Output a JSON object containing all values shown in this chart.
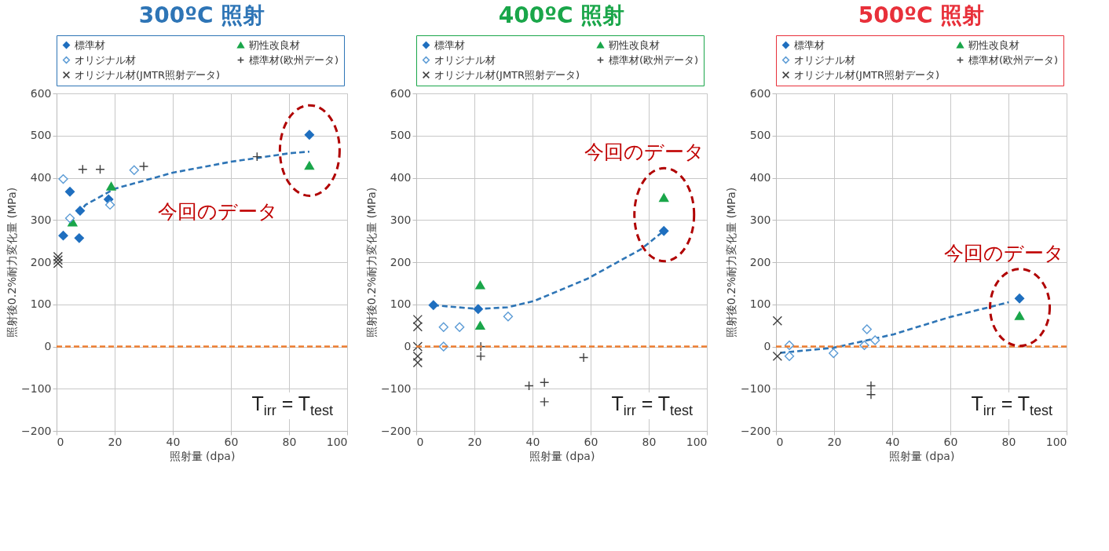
{
  "chart_data": [
    {
      "type": "scatter",
      "title": "300ºC 照射",
      "xlabel": "照射量 (dpa)",
      "ylabel": "照射後0.2%耐力変化量 (MPa)",
      "xlim": [
        0,
        100
      ],
      "ylim": [
        -200,
        600
      ],
      "xticks": [
        0,
        20,
        40,
        60,
        80,
        100
      ],
      "yticks": [
        -200,
        -100,
        0,
        100,
        200,
        300,
        400,
        500,
        600
      ],
      "grid": true,
      "legend": "top",
      "series": [
        {
          "name": "標準材",
          "type": "scatter",
          "marker": "diamond",
          "color": "#1f6fbf",
          "x": [
            2.3,
            4.6,
            7.8,
            8.1,
            17.9,
            87
          ],
          "values": [
            263,
            367,
            257,
            322,
            349,
            502
          ]
        },
        {
          "name": "靭性改良材",
          "type": "scatter",
          "marker": "triangle",
          "color": "#1aa64a",
          "x": [
            5.5,
            18.8,
            87
          ],
          "values": [
            295,
            380,
            429
          ]
        },
        {
          "name": "オリジナル材",
          "type": "scatter",
          "marker": "diamond",
          "color": "#5b9bd5",
          "x": [
            2.3,
            4.6,
            18.4,
            26.7
          ],
          "values": [
            397,
            304,
            336,
            418
          ]
        },
        {
          "name": "標準材(欧州データ)",
          "type": "scatter",
          "marker": "cross",
          "color": "#404040",
          "x": [
            9,
            15,
            30,
            69
          ],
          "values": [
            420,
            420,
            427,
            450
          ]
        },
        {
          "name": "オリジナル材(JMTR照射データ)",
          "type": "scatter",
          "marker": "x",
          "color": "#404040",
          "x": [
            0.5,
            0.5,
            0.5
          ],
          "values": [
            213,
            205,
            197
          ]
        },
        {
          "type": "line",
          "line_style": "dashed",
          "color": "#2e75b6",
          "x": [
            7.4,
            10,
            20,
            40,
            60,
            80,
            87
          ],
          "values": [
            315,
            336,
            374,
            412,
            438,
            458,
            462
          ]
        }
      ],
      "ref_lines": [
        {
          "axis": "y",
          "value": 0,
          "color": "#ed7d31",
          "line_style": "dashed"
        }
      ],
      "annotations": [
        "今回のデータ",
        "T$_{irr}$ = T$_{test}$"
      ]
    },
    {
      "type": "scatter",
      "title": "400ºC 照射",
      "xlabel": "照射量 (dpa)",
      "ylabel": "照射後0.2%耐力変化量 (MPa)",
      "xlim": [
        0,
        100
      ],
      "ylim": [
        -200,
        600
      ],
      "xticks": [
        0,
        20,
        40,
        60,
        80,
        100
      ],
      "yticks": [
        -200,
        -100,
        0,
        100,
        200,
        300,
        400,
        500,
        600
      ],
      "grid": true,
      "legend": "top",
      "series": [
        {
          "name": "標準材",
          "type": "scatter",
          "marker": "diamond",
          "color": "#1f6fbf",
          "x": [
            5.9,
            21.3,
            85.2
          ],
          "values": [
            98,
            89,
            274
          ]
        },
        {
          "name": "靭性改良材",
          "type": "scatter",
          "marker": "triangle",
          "color": "#1aa64a",
          "x": [
            22,
            22,
            85.2
          ],
          "values": [
            146,
            50,
            353
          ]
        },
        {
          "name": "オリジナル材",
          "type": "scatter",
          "marker": "diamond",
          "color": "#5b9bd5",
          "x": [
            9.4,
            14.9,
            9.4,
            31.6
          ],
          "values": [
            46,
            46,
            0,
            71
          ]
        },
        {
          "name": "標準材(欧州データ)",
          "type": "scatter",
          "marker": "cross",
          "color": "#404040",
          "x": [
            22.2,
            22.2,
            38.8,
            44.1,
            44.1,
            57.6
          ],
          "values": [
            0,
            -23,
            -93,
            -85,
            -131,
            -26
          ]
        },
        {
          "name": "オリジナル材(JMTR照射データ)",
          "type": "scatter",
          "marker": "x",
          "color": "#404040",
          "x": [
            0.5,
            0.5,
            0.5,
            0.5,
            0.5
          ],
          "values": [
            64,
            47,
            0,
            -23,
            -38
          ]
        },
        {
          "type": "line",
          "line_style": "dashed",
          "color": "#2e75b6",
          "x": [
            5.9,
            21.3,
            31.4,
            40.6,
            59,
            77.4,
            85.2
          ],
          "values": [
            98,
            89,
            93,
            108,
            161,
            231,
            274
          ]
        }
      ],
      "ref_lines": [
        {
          "axis": "y",
          "value": 0,
          "color": "#ed7d31",
          "line_style": "dashed"
        }
      ],
      "annotations": [
        "今回のデータ",
        "T$_{irr}$ = T$_{test}$"
      ]
    },
    {
      "type": "scatter",
      "title": "500ºC 照射",
      "xlabel": "照射量 (dpa)",
      "ylabel": "照射後0.2%耐力変化量 (MPa)",
      "xlim": [
        0,
        100
      ],
      "ylim": [
        -200,
        600
      ],
      "xticks": [
        0,
        20,
        40,
        60,
        80,
        100
      ],
      "yticks": [
        -200,
        -100,
        0,
        100,
        200,
        300,
        400,
        500,
        600
      ],
      "grid": true,
      "legend": "top",
      "series": [
        {
          "name": "標準材",
          "type": "scatter",
          "marker": "diamond",
          "color": "#1f6fbf",
          "x": [
            83.8
          ],
          "values": [
            114
          ]
        },
        {
          "name": "靭性改良材",
          "type": "scatter",
          "marker": "triangle",
          "color": "#1aa64a",
          "x": [
            83.8
          ],
          "values": [
            73
          ]
        },
        {
          "name": "オリジナル材",
          "type": "scatter",
          "marker": "diamond",
          "color": "#5b9bd5",
          "x": [
            4.6,
            4.6,
            19.8,
            31.3,
            30.4,
            34.1
          ],
          "values": [
            3,
            -23,
            -16,
            41,
            3,
            15
          ]
        },
        {
          "name": "標準材(欧州データ)",
          "type": "scatter",
          "marker": "cross",
          "color": "#404040",
          "x": [
            32.7,
            32.7
          ],
          "values": [
            -93,
            -114
          ]
        },
        {
          "name": "オリジナル材(JMTR照射データ)",
          "type": "scatter",
          "marker": "x",
          "color": "#404040",
          "x": [
            0.5,
            0.5
          ],
          "values": [
            61,
            -23
          ]
        },
        {
          "type": "line",
          "line_style": "dashed",
          "color": "#2e75b6",
          "x": [
            1.4,
            19.8,
            40.5,
            59.9,
            80.1
          ],
          "values": [
            -15,
            -3,
            29,
            70,
            105
          ]
        }
      ],
      "ref_lines": [
        {
          "axis": "y",
          "value": 0,
          "color": "#ed7d31",
          "line_style": "dashed"
        }
      ],
      "annotations": [
        "今回のデータ",
        "T$_{irr}$ = T$_{test}$"
      ]
    }
  ]
}
